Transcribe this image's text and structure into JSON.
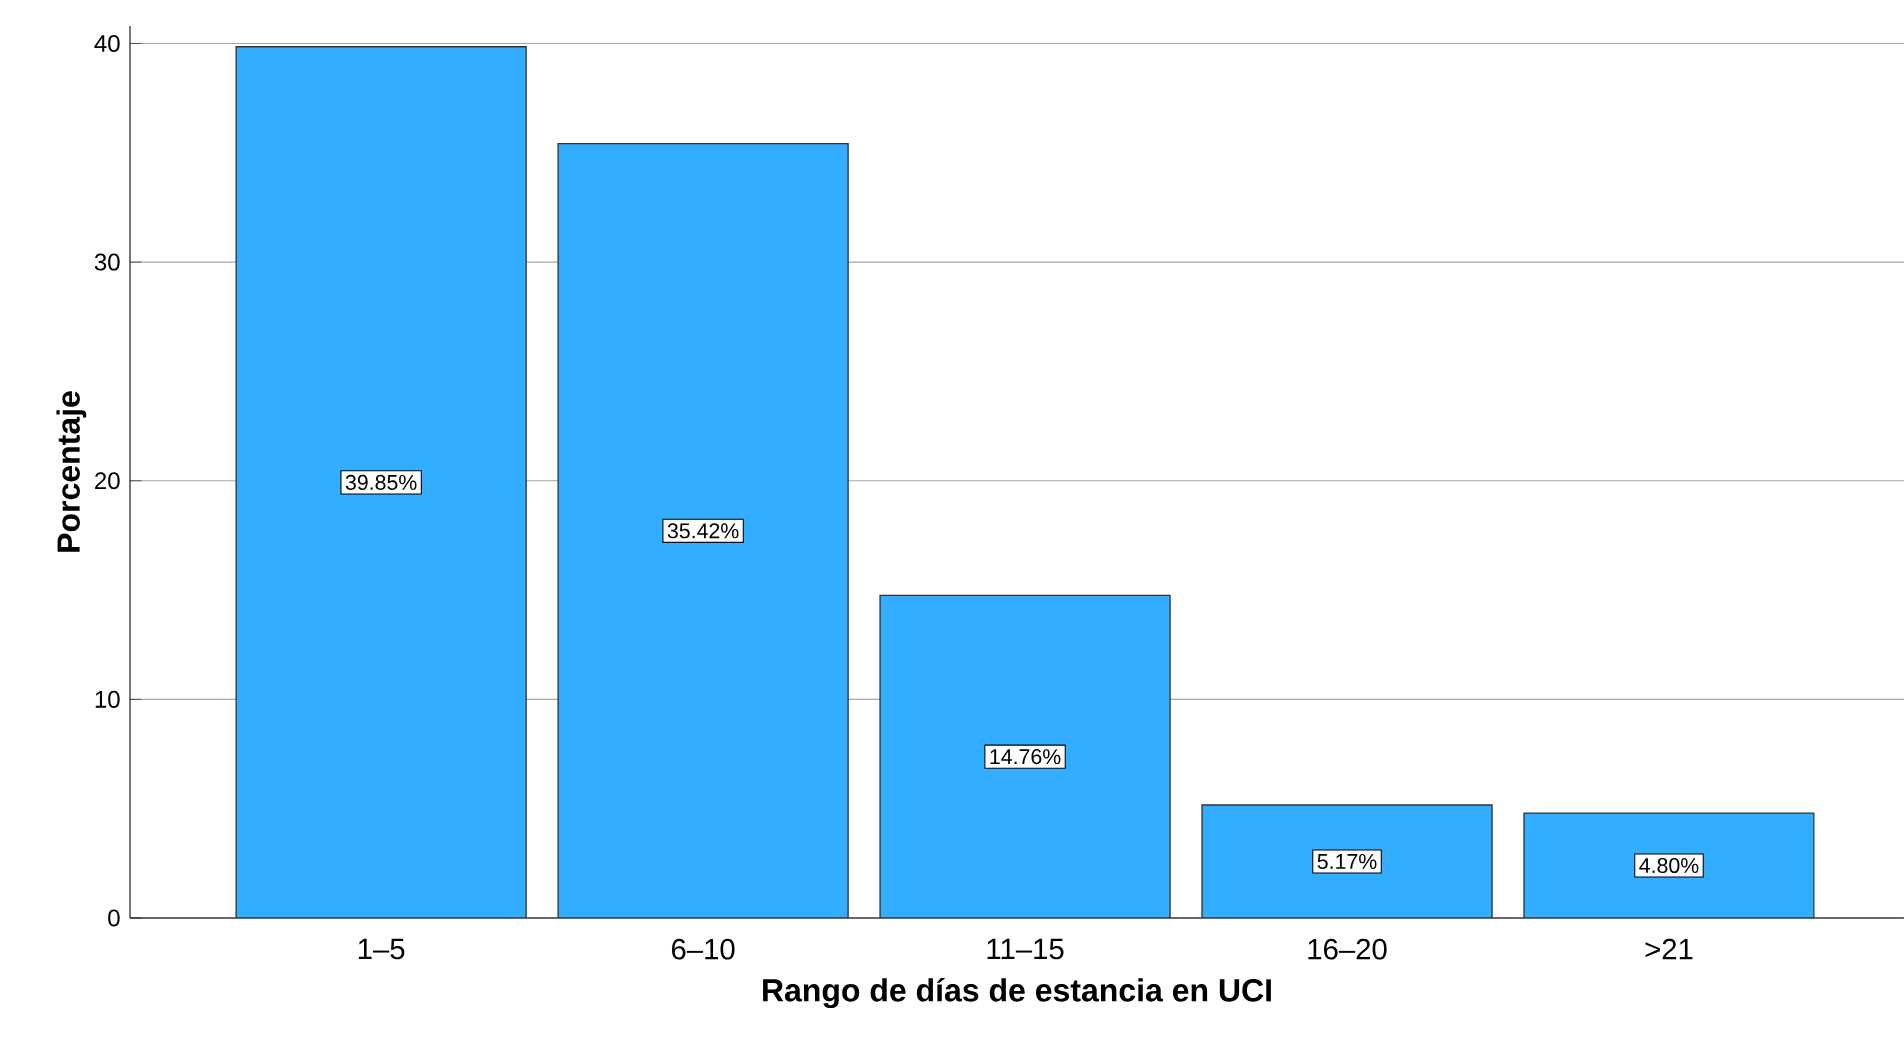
{
  "chart_data": {
    "type": "bar",
    "xlabel": "Rango de días de estancia en UCI",
    "ylabel": "Porcentaje",
    "categories": [
      "1–5",
      "6–10",
      "11–15",
      "16–20",
      ">21"
    ],
    "values": [
      39.85,
      35.42,
      14.76,
      5.17,
      4.8
    ],
    "value_labels": [
      "39.85%",
      "35.42%",
      "14.76%",
      "5.17%",
      "4.80%"
    ],
    "color": "#33adff",
    "ylim": [
      0,
      40.8
    ],
    "yticks": [
      0,
      10,
      20,
      30,
      40
    ],
    "grid": "y"
  }
}
